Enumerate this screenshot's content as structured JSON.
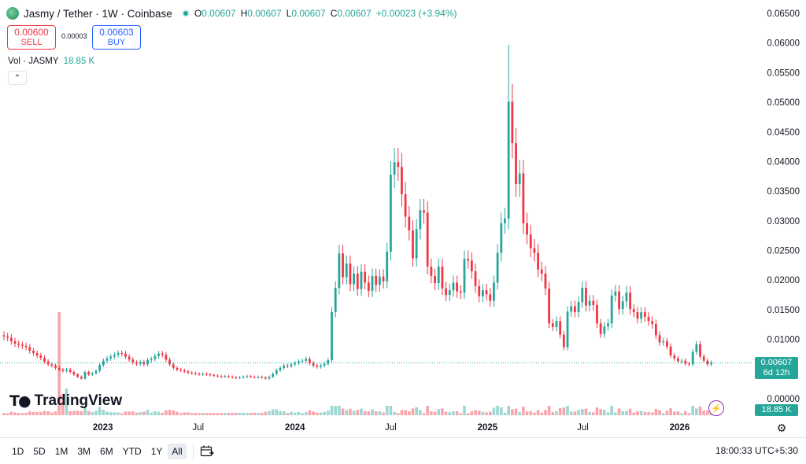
{
  "header": {
    "title": "Jasmy / Tether · 1W · Coinbase",
    "ohlc": {
      "o_label": "O",
      "o_value": "0.00607",
      "h_label": "H",
      "h_value": "0.00607",
      "l_label": "L",
      "l_value": "0.00607",
      "c_label": "C",
      "c_value": "0.00607",
      "change": "+0.00023 (+3.94%)"
    }
  },
  "trade": {
    "sell_price": "0.00600",
    "sell_label": "SELL",
    "spread": "0.00003",
    "buy_price": "0.00603",
    "buy_label": "BUY"
  },
  "volume_legend": {
    "label": "Vol · JASMY",
    "value": "18.85 K"
  },
  "branding": {
    "logo_text": "TradingView"
  },
  "price_scale": {
    "last_price": "0.00607",
    "countdown": "6d 12h",
    "volume_tag": "18.85 K"
  },
  "toolbar": {
    "ranges": [
      "1D",
      "5D",
      "1M",
      "3M",
      "6M",
      "YTD",
      "1Y",
      "All"
    ],
    "active_range": "All",
    "clock": "18:00:33 UTC+5:30"
  },
  "colors": {
    "up": "#26a69a",
    "down": "#f23645",
    "accent": "#2962ff"
  },
  "chart_data": {
    "type": "candlestick",
    "y_axis": {
      "ticks": [
        "0.06500",
        "0.06000",
        "0.05500",
        "0.05000",
        "0.04500",
        "0.04000",
        "0.03500",
        "0.03000",
        "0.02500",
        "0.02000",
        "0.01500",
        "0.01000",
        "0.00000"
      ],
      "range": [
        0,
        0.065
      ],
      "last_value": 0.00607
    },
    "x_axis": {
      "labels": [
        "2023",
        "Jul",
        "2024",
        "Jul",
        "2025",
        "Jul",
        "2026"
      ],
      "start": "2022-06-27",
      "interval": "1W"
    },
    "weekly_closes": [
      0.0105,
      0.0103,
      0.0097,
      0.0093,
      0.0091,
      0.0089,
      0.0087,
      0.0081,
      0.0077,
      0.0073,
      0.0069,
      0.0063,
      0.0058,
      0.0056,
      0.0052,
      0.0049,
      0.0047,
      0.0049,
      0.0045,
      0.0041,
      0.0037,
      0.0034,
      0.0045,
      0.0041,
      0.0043,
      0.0047,
      0.0057,
      0.0064,
      0.0068,
      0.0071,
      0.0074,
      0.0077,
      0.0076,
      0.0071,
      0.0066,
      0.0061,
      0.0059,
      0.0062,
      0.0058,
      0.0065,
      0.0067,
      0.0072,
      0.0076,
      0.0074,
      0.0066,
      0.0058,
      0.0052,
      0.0049,
      0.0048,
      0.0046,
      0.0044,
      0.0043,
      0.0042,
      0.0041,
      0.0042,
      0.0041,
      0.004,
      0.0039,
      0.0038,
      0.0037,
      0.0038,
      0.0037,
      0.0036,
      0.0035,
      0.0036,
      0.0037,
      0.0038,
      0.0037,
      0.0036,
      0.0037,
      0.0036,
      0.0034,
      0.0037,
      0.0042,
      0.0048,
      0.0052,
      0.0056,
      0.0055,
      0.0058,
      0.006,
      0.0063,
      0.0064,
      0.0067,
      0.006,
      0.0056,
      0.0054,
      0.0056,
      0.0059,
      0.0065,
      0.0146,
      0.0187,
      0.0245,
      0.0205,
      0.0228,
      0.0193,
      0.0211,
      0.0185,
      0.0214,
      0.0196,
      0.0182,
      0.0207,
      0.0192,
      0.0206,
      0.0198,
      0.0248,
      0.0378,
      0.0399,
      0.0391,
      0.0345,
      0.0307,
      0.0284,
      0.0237,
      0.0286,
      0.0318,
      0.0314,
      0.0223,
      0.0207,
      0.0195,
      0.0223,
      0.0186,
      0.0175,
      0.0183,
      0.0196,
      0.0181,
      0.0179,
      0.0236,
      0.0233,
      0.0215,
      0.019,
      0.0173,
      0.0183,
      0.0176,
      0.0165,
      0.0196,
      0.0246,
      0.0296,
      0.0304,
      0.0501,
      0.0431,
      0.0362,
      0.038,
      0.0296,
      0.0277,
      0.0254,
      0.0246,
      0.0218,
      0.0211,
      0.0186,
      0.0127,
      0.0121,
      0.0131,
      0.0108,
      0.0087,
      0.0147,
      0.0156,
      0.0146,
      0.0163,
      0.0187,
      0.0157,
      0.0165,
      0.0158,
      0.0127,
      0.0109,
      0.0122,
      0.0127,
      0.0174,
      0.0181,
      0.0151,
      0.0164,
      0.0179,
      0.0151,
      0.0146,
      0.0135,
      0.0146,
      0.0138,
      0.0131,
      0.0126,
      0.0107,
      0.0095,
      0.0097,
      0.0088,
      0.0073,
      0.0068,
      0.0063,
      0.0064,
      0.0059,
      0.0058,
      0.0079,
      0.0092,
      0.0071,
      0.0064,
      0.0058,
      0.0061
    ],
    "peak_high": 0.0597,
    "volume": {
      "last": "18.85 K"
    }
  }
}
